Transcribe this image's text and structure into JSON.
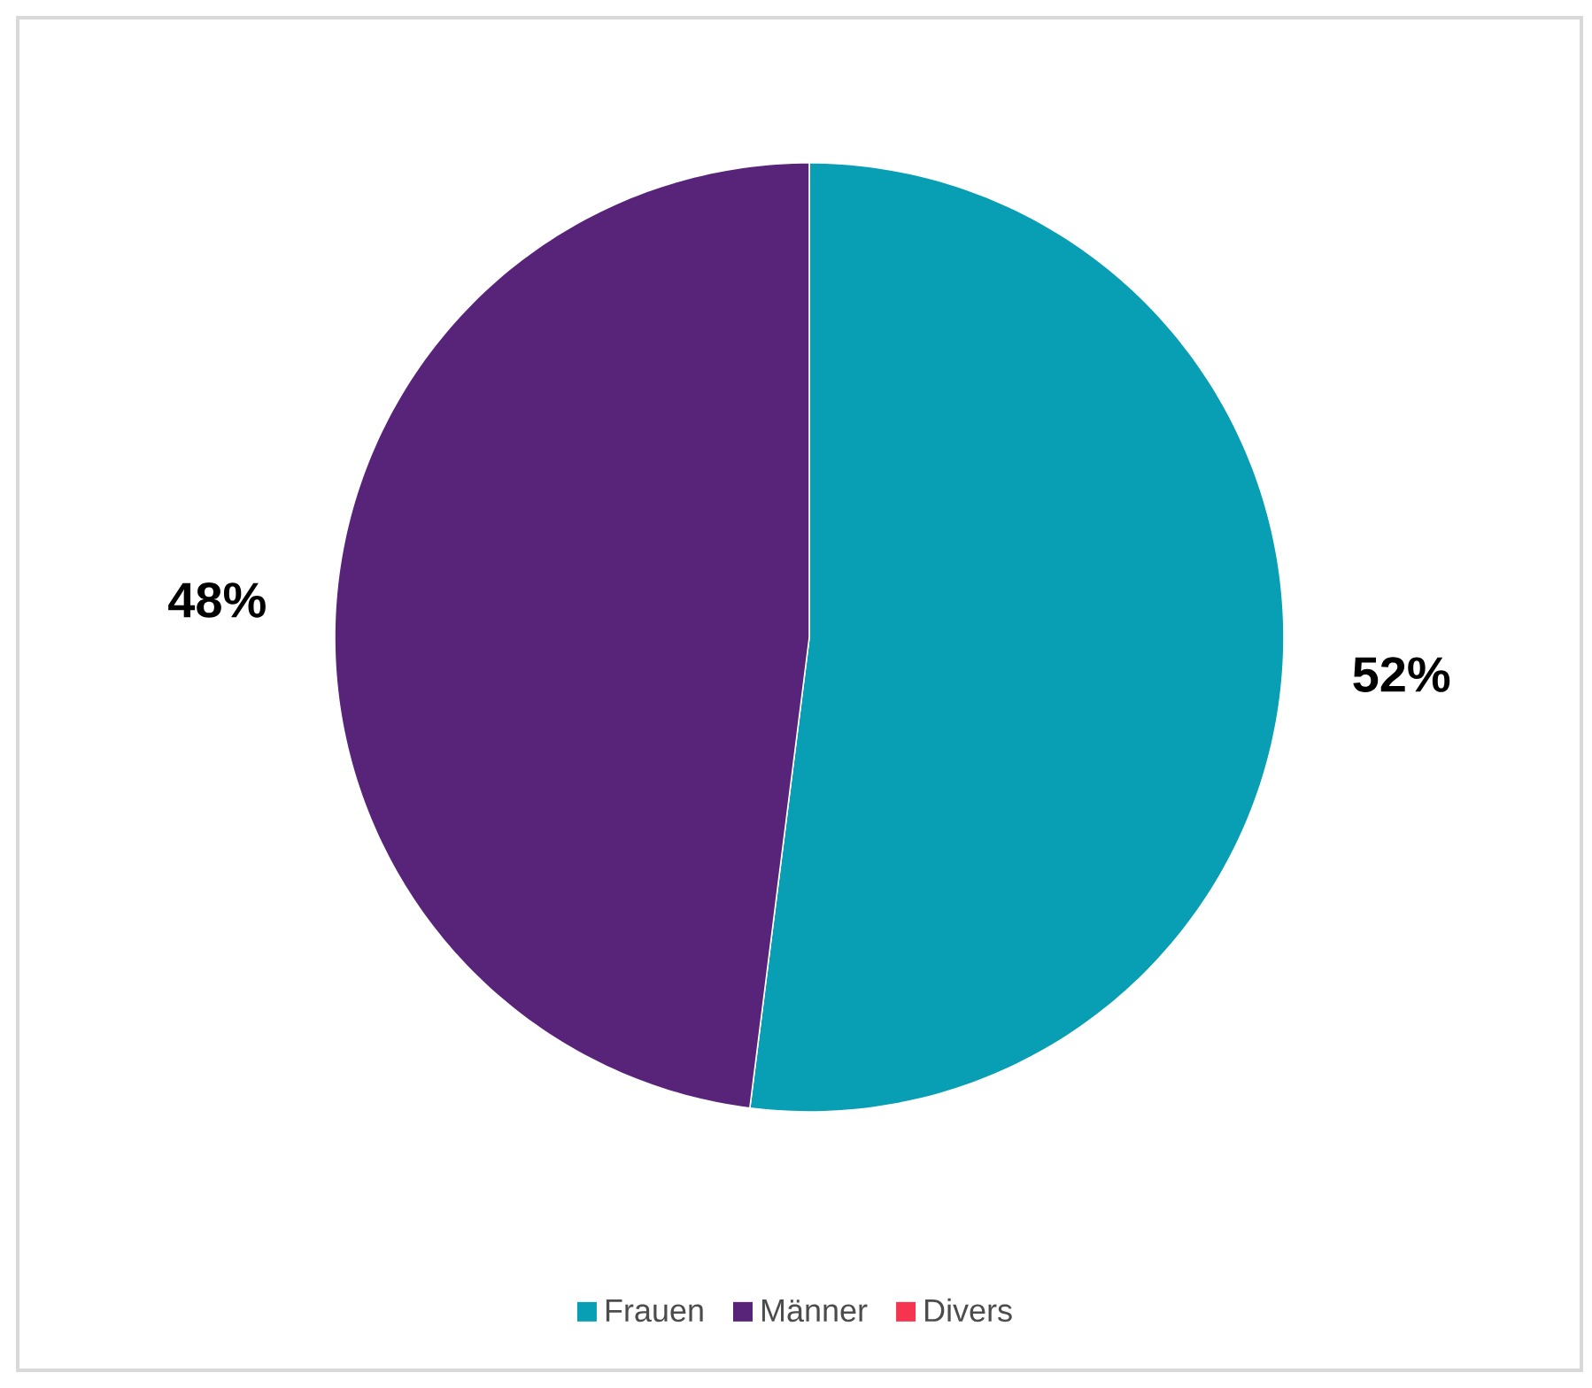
{
  "chart_data": {
    "type": "pie",
    "categories": [
      "Frauen",
      "Männer",
      "Divers"
    ],
    "values": [
      52,
      48,
      0
    ],
    "colors": [
      "#089eb4",
      "#57247a",
      "#f5344f"
    ],
    "value_labels": [
      "52%",
      "48%",
      null
    ],
    "legend": "bottom"
  }
}
